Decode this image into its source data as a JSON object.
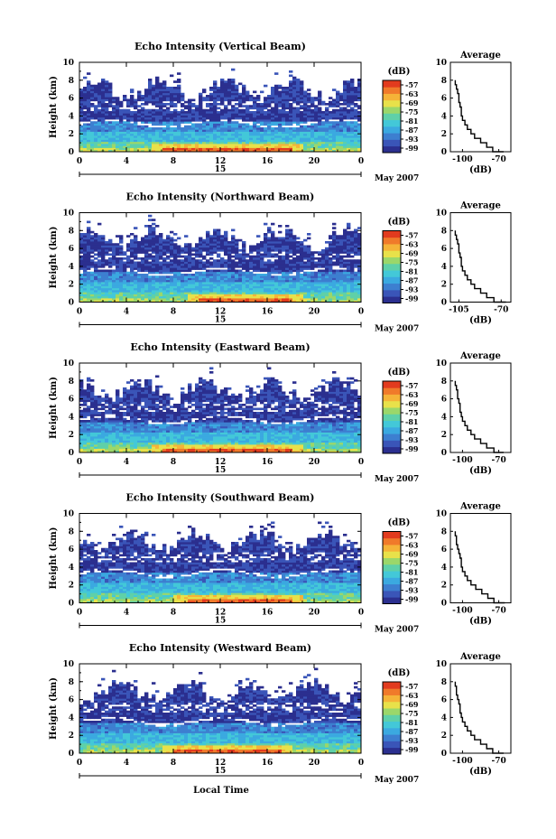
{
  "figure": {
    "xlabel": "Local Time",
    "ylabel": "Height (km)",
    "date_text": "May 2007",
    "day_label": "15",
    "colorbar_unit": "(dB)",
    "colorbar_ticks": [
      "-57",
      "-63",
      "-69",
      "-75",
      "-81",
      "-87",
      "-93",
      "-99"
    ],
    "average_title": "Average",
    "average_xlabel": "(dB)",
    "colors": [
      "#2b2f8f",
      "#3a55b8",
      "#3d7fd0",
      "#3ba9e0",
      "#43c8d8",
      "#5fd0a8",
      "#9bd76a",
      "#e8e14a",
      "#f5b338",
      "#f07a2a",
      "#e23b1e"
    ]
  },
  "chart_data": [
    {
      "type": "heatmap",
      "title": "Echo Intensity (Vertical Beam)",
      "xlabel": "Local Time",
      "ylabel": "Height (km)",
      "x_ticks": [
        "0",
        "4",
        "8",
        "12",
        "16",
        "20",
        "0"
      ],
      "y_ticks": [
        "0",
        "2",
        "4",
        "6",
        "8",
        "10"
      ],
      "xlim": [
        0,
        24
      ],
      "ylim": [
        0,
        10
      ],
      "colorbar": {
        "label": "(dB)",
        "ticks": [
          -57,
          -63,
          -69,
          -75,
          -81,
          -87,
          -93,
          -99
        ]
      },
      "surface_band": {
        "x_range": [
          7,
          18
        ],
        "value_dB": -57
      },
      "average_profile": {
        "title": "Average",
        "xlabel": "(dB)",
        "x_ticks": [
          "-100",
          "-70"
        ],
        "xlim": [
          -110,
          -60
        ],
        "ylim": [
          0,
          10
        ],
        "height_km": [
          0,
          0.5,
          1,
          1.5,
          2,
          2.5,
          3,
          3.5,
          4,
          4.5,
          5,
          5.5,
          6,
          6.5,
          7,
          7.5,
          8
        ],
        "values_dB": [
          -66,
          -75,
          -80,
          -85,
          -90,
          -93,
          -96,
          -98,
          -100,
          -101,
          -101,
          -102,
          -103,
          -103,
          -104,
          -105,
          -106
        ]
      }
    },
    {
      "type": "heatmap",
      "title": "Echo Intensity (Northward Beam)",
      "xlabel": "Local Time",
      "ylabel": "Height (km)",
      "x_ticks": [
        "0",
        "4",
        "8",
        "12",
        "16",
        "20",
        "0"
      ],
      "y_ticks": [
        "0",
        "2",
        "4",
        "6",
        "8",
        "10"
      ],
      "xlim": [
        0,
        24
      ],
      "ylim": [
        0,
        10
      ],
      "colorbar": {
        "label": "(dB)",
        "ticks": [
          -57,
          -63,
          -69,
          -75,
          -81,
          -87,
          -93,
          -99
        ]
      },
      "surface_band": {
        "x_range": [
          10,
          18
        ],
        "value_dB": -60
      },
      "average_profile": {
        "title": "Average",
        "xlabel": "(dB)",
        "x_ticks": [
          "-105",
          "-70"
        ],
        "xlim": [
          -112,
          -62
        ],
        "ylim": [
          0,
          10
        ],
        "height_km": [
          0,
          0.5,
          1,
          1.5,
          2,
          2.5,
          3,
          3.5,
          4,
          4.5,
          5,
          5.5,
          6,
          6.5,
          7,
          7.5,
          8
        ],
        "values_dB": [
          -66,
          -76,
          -82,
          -87,
          -92,
          -95,
          -98,
          -100,
          -102,
          -103,
          -103,
          -104,
          -105,
          -105,
          -106,
          -107,
          -108
        ]
      }
    },
    {
      "type": "heatmap",
      "title": "Echo Intensity (Eastward Beam)",
      "xlabel": "Local Time",
      "ylabel": "Height (km)",
      "x_ticks": [
        "0",
        "4",
        "8",
        "12",
        "16",
        "20",
        "0"
      ],
      "y_ticks": [
        "0",
        "2",
        "4",
        "6",
        "8",
        "10"
      ],
      "xlim": [
        0,
        24
      ],
      "ylim": [
        0,
        10
      ],
      "colorbar": {
        "label": "(dB)",
        "ticks": [
          -57,
          -63,
          -69,
          -75,
          -81,
          -87,
          -93,
          -99
        ]
      },
      "surface_band": {
        "x_range": [
          7,
          18
        ],
        "value_dB": -58
      },
      "average_profile": {
        "title": "Average",
        "xlabel": "(dB)",
        "x_ticks": [
          "-100",
          "-70"
        ],
        "xlim": [
          -110,
          -60
        ],
        "ylim": [
          0,
          10
        ],
        "height_km": [
          0,
          0.5,
          1,
          1.5,
          2,
          2.5,
          3,
          3.5,
          4,
          4.5,
          5,
          5.5,
          6,
          6.5,
          7,
          7.5,
          8
        ],
        "values_dB": [
          -66,
          -74,
          -80,
          -85,
          -90,
          -93,
          -96,
          -98,
          -100,
          -101,
          -102,
          -102,
          -103,
          -104,
          -104,
          -105,
          -106
        ]
      }
    },
    {
      "type": "heatmap",
      "title": "Echo Intensity (Southward Beam)",
      "xlabel": "Local Time",
      "ylabel": "Height (km)",
      "x_ticks": [
        "0",
        "4",
        "8",
        "12",
        "16",
        "20",
        "0"
      ],
      "y_ticks": [
        "0",
        "2",
        "4",
        "6",
        "8",
        "10"
      ],
      "xlim": [
        0,
        24
      ],
      "ylim": [
        0,
        10
      ],
      "colorbar": {
        "label": "(dB)",
        "ticks": [
          -57,
          -63,
          -69,
          -75,
          -81,
          -87,
          -93,
          -99
        ]
      },
      "surface_band": {
        "x_range": [
          9,
          18
        ],
        "value_dB": -58
      },
      "average_profile": {
        "title": "Average",
        "xlabel": "(dB)",
        "x_ticks": [
          "-100",
          "-70"
        ],
        "xlim": [
          -110,
          -60
        ],
        "ylim": [
          0,
          10
        ],
        "height_km": [
          0,
          0.5,
          1,
          1.5,
          2,
          2.5,
          3,
          3.5,
          4,
          4.5,
          5,
          5.5,
          6,
          6.5,
          7,
          7.5,
          8
        ],
        "values_dB": [
          -65,
          -74,
          -79,
          -84,
          -89,
          -93,
          -96,
          -98,
          -100,
          -101,
          -101,
          -102,
          -103,
          -104,
          -105,
          -105,
          -106
        ]
      }
    },
    {
      "type": "heatmap",
      "title": "Echo Intensity (Westward Beam)",
      "xlabel": "Local Time",
      "ylabel": "Height (km)",
      "x_ticks": [
        "0",
        "4",
        "8",
        "12",
        "16",
        "20",
        "0"
      ],
      "y_ticks": [
        "0",
        "2",
        "4",
        "6",
        "8",
        "10"
      ],
      "xlim": [
        0,
        24
      ],
      "ylim": [
        0,
        10
      ],
      "colorbar": {
        "label": "(dB)",
        "ticks": [
          -57,
          -63,
          -69,
          -75,
          -81,
          -87,
          -93,
          -99
        ]
      },
      "surface_band": {
        "x_range": [
          8,
          17
        ],
        "value_dB": -58
      },
      "average_profile": {
        "title": "Average",
        "xlabel": "(dB)",
        "x_ticks": [
          "-100",
          "-70"
        ],
        "xlim": [
          -110,
          -60
        ],
        "ylim": [
          0,
          10
        ],
        "height_km": [
          0,
          0.5,
          1,
          1.5,
          2,
          2.5,
          3,
          3.5,
          4,
          4.5,
          5,
          5.5,
          6,
          6.5,
          7,
          7.5,
          8
        ],
        "values_dB": [
          -66,
          -75,
          -80,
          -85,
          -90,
          -93,
          -96,
          -98,
          -100,
          -101,
          -102,
          -102,
          -103,
          -104,
          -105,
          -105,
          -106
        ]
      }
    }
  ]
}
